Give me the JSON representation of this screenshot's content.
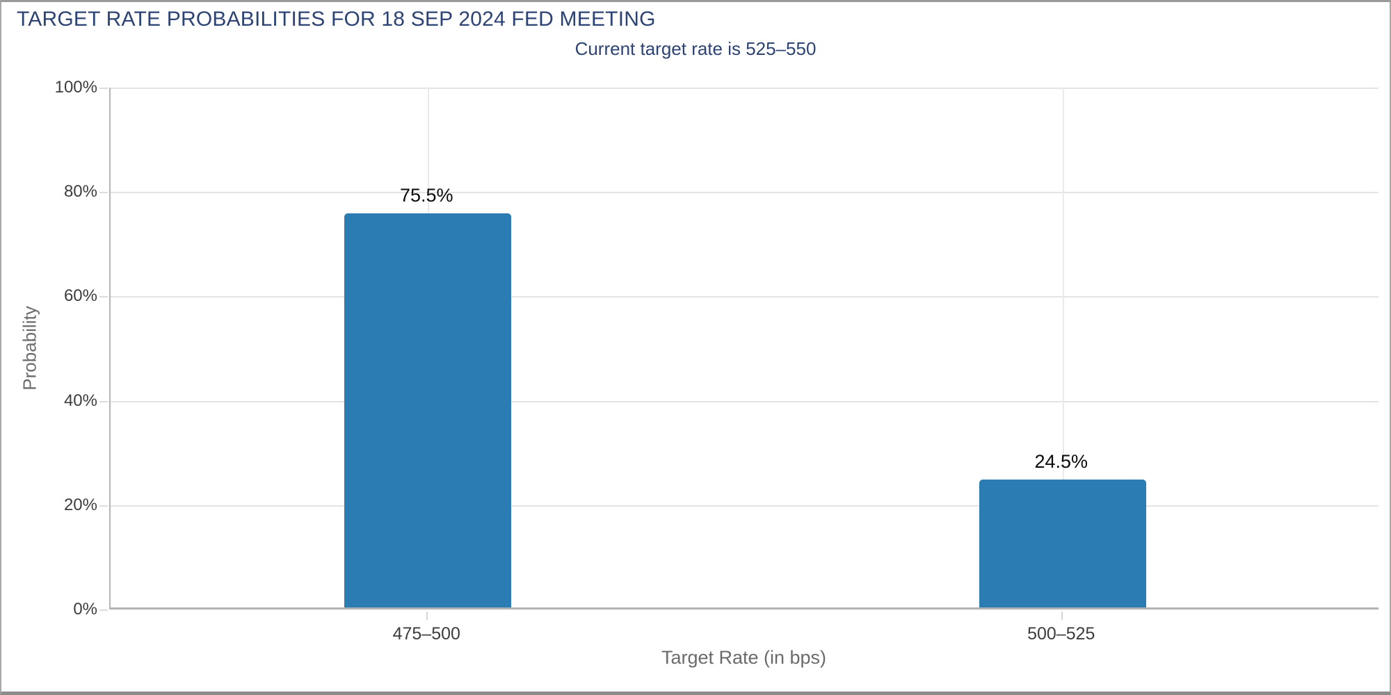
{
  "header": {
    "title": "TARGET RATE PROBABILITIES FOR 18 SEP 2024 FED MEETING",
    "subtitle": "Current target rate is 525–550"
  },
  "colors": {
    "bar": "#2b7cb3",
    "title_text": "#2d4373",
    "tick_text": "#3d3d3d",
    "axis_title_text": "#6b6b6b"
  },
  "chart_data": {
    "type": "bar",
    "title": "TARGET RATE PROBABILITIES FOR 18 SEP 2024 FED MEETING",
    "subtitle": "Current target rate is 525–550",
    "categories": [
      "475–500",
      "500–525"
    ],
    "values": [
      75.5,
      24.5
    ],
    "value_labels": [
      "75.5%",
      "24.5%"
    ],
    "xlabel": "Target Rate (in bps)",
    "ylabel": "Probability",
    "ylim": [
      0,
      100
    ],
    "ytick_values": [
      0,
      20,
      40,
      60,
      80,
      100
    ],
    "ytick_labels": [
      "0%",
      "20%",
      "40%",
      "60%",
      "80%",
      "100%"
    ],
    "grid": "horizontal gridlines at 20% steps, vertical gridline at each category center",
    "legend": "none",
    "bar_color": "#2b7cb3"
  }
}
